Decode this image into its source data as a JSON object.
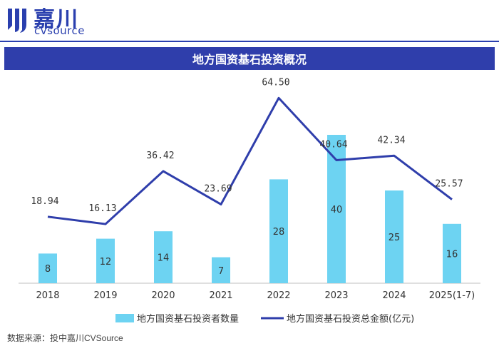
{
  "brand": {
    "name_cn": "嘉川",
    "name_en": "cvsource"
  },
  "title": "地方国资基石投资概况",
  "source": "数据来源：投中嘉川CVSource",
  "colors": {
    "brand_blue": "#2a3fae",
    "bar": "#6dd3f2",
    "line": "#2f3eab"
  },
  "chart_data": {
    "type": "bar",
    "categories": [
      "2018",
      "2019",
      "2020",
      "2021",
      "2022",
      "2023",
      "2024",
      "2025(1-7)"
    ],
    "series": [
      {
        "name": "地方国资基石投资者数量",
        "type": "bar",
        "axis": "left",
        "values": [
          8,
          12,
          14,
          7,
          28,
          40,
          25,
          16
        ],
        "value_labels": [
          "8",
          "12",
          "14",
          "7",
          "28",
          "40",
          "25",
          "16"
        ]
      },
      {
        "name": "地方国资基石投资总金额(亿元)",
        "type": "line",
        "axis": "right",
        "values": [
          18.94,
          16.13,
          36.42,
          23.69,
          64.5,
          40.64,
          42.34,
          25.57
        ],
        "value_labels": [
          "18.94",
          "16.13",
          "36.42",
          "23.69",
          "64.50",
          "40.64",
          "42.34",
          "25.57"
        ]
      }
    ],
    "ylim_left": [
      0,
      50
    ],
    "ylim_right": [
      0,
      70
    ],
    "grid": false,
    "legend": "bottom-center"
  }
}
